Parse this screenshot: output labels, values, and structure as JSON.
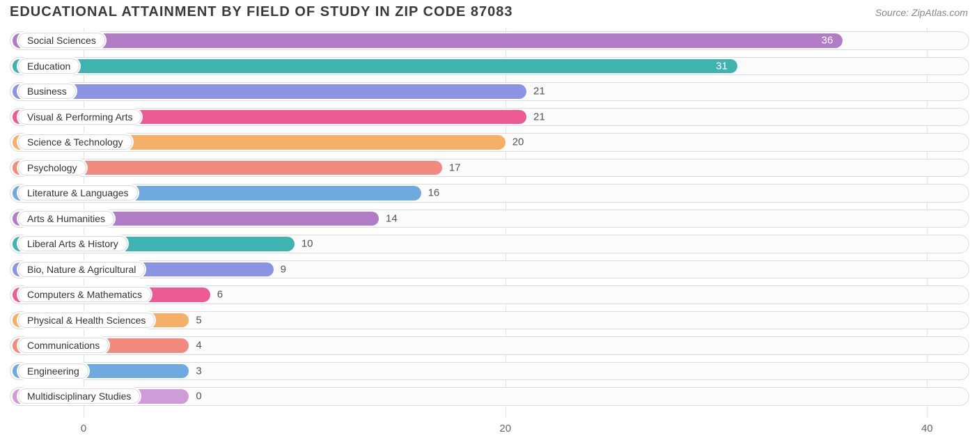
{
  "title": "EDUCATIONAL ATTAINMENT BY FIELD OF STUDY IN ZIP CODE 87083",
  "source": "Source: ZipAtlas.com",
  "chart": {
    "type": "bar-horizontal",
    "xmin": -3.5,
    "xmax": 42,
    "xticks": [
      0,
      20,
      40
    ],
    "track_bg": "#fbfbfb",
    "track_border": "#dcdcdc",
    "tick_color": "#666666",
    "grid_color": "#e3e3e3",
    "title_color": "#3a3a3a",
    "source_color": "#888888",
    "min_pill_value": 5,
    "bars": [
      {
        "label": "Social Sciences",
        "value": 36,
        "color": "#b07cc6",
        "value_in_bar": true
      },
      {
        "label": "Education",
        "value": 31,
        "color": "#3fb3b0",
        "value_in_bar": true
      },
      {
        "label": "Business",
        "value": 21,
        "color": "#8b94e3",
        "value_in_bar": false
      },
      {
        "label": "Visual & Performing Arts",
        "value": 21,
        "color": "#ee5b94",
        "value_in_bar": false
      },
      {
        "label": "Science & Technology",
        "value": 20,
        "color": "#f4b066",
        "value_in_bar": false
      },
      {
        "label": "Psychology",
        "value": 17,
        "color": "#f28a80",
        "value_in_bar": false
      },
      {
        "label": "Literature & Languages",
        "value": 16,
        "color": "#6ea9e0",
        "value_in_bar": false
      },
      {
        "label": "Arts & Humanities",
        "value": 14,
        "color": "#b07cc6",
        "value_in_bar": false
      },
      {
        "label": "Liberal Arts & History",
        "value": 10,
        "color": "#3fb3b0",
        "value_in_bar": false
      },
      {
        "label": "Bio, Nature & Agricultural",
        "value": 9,
        "color": "#8b94e3",
        "value_in_bar": false
      },
      {
        "label": "Computers & Mathematics",
        "value": 6,
        "color": "#ee5b94",
        "value_in_bar": false
      },
      {
        "label": "Physical & Health Sciences",
        "value": 5,
        "color": "#f4b066",
        "value_in_bar": false
      },
      {
        "label": "Communications",
        "value": 4,
        "color": "#f28a80",
        "value_in_bar": false
      },
      {
        "label": "Engineering",
        "value": 3,
        "color": "#6ea9e0",
        "value_in_bar": false
      },
      {
        "label": "Multidisciplinary Studies",
        "value": 0,
        "color": "#cf9bd9",
        "value_in_bar": false
      }
    ]
  }
}
